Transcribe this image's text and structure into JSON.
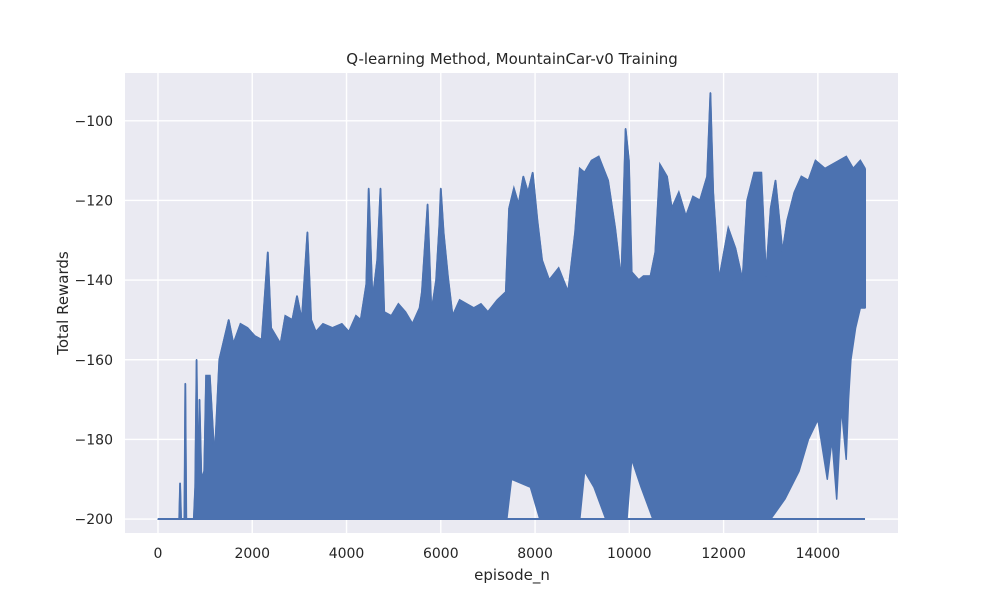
{
  "chart_data": {
    "type": "line",
    "title": "Q-learning Method, MountainCar-v0 Training",
    "xlabel": "episode_n",
    "ylabel": "Total Rewards",
    "xlim": [
      -700,
      15700
    ],
    "ylim": [
      -203.5,
      -88
    ],
    "x_ticks": [
      0,
      2000,
      4000,
      6000,
      8000,
      10000,
      12000,
      14000
    ],
    "x_tick_labels": [
      "0",
      "2000",
      "4000",
      "6000",
      "8000",
      "10000",
      "12000",
      "14000"
    ],
    "y_ticks": [
      -200,
      -180,
      -160,
      -140,
      -120,
      -100
    ],
    "y_tick_labels": [
      "−200",
      "−180",
      "−160",
      "−140",
      "−120",
      "−100"
    ],
    "grid": true,
    "background_color": "#eaeaf2",
    "series": [
      {
        "color": "#4c72b0",
        "x_range": [
          0,
          15000
        ],
        "baseline": -200,
        "lower_envelope": [
          [
            0,
            -200
          ],
          [
            7400,
            -200
          ],
          [
            7500,
            -190
          ],
          [
            7900,
            -192
          ],
          [
            8100,
            -200
          ],
          [
            8950,
            -200
          ],
          [
            9050,
            -188
          ],
          [
            9250,
            -192
          ],
          [
            9500,
            -200
          ],
          [
            9950,
            -200
          ],
          [
            10050,
            -185
          ],
          [
            10250,
            -192
          ],
          [
            10500,
            -200
          ],
          [
            13000,
            -200
          ],
          [
            13300,
            -195
          ],
          [
            13600,
            -188
          ],
          [
            13800,
            -180
          ],
          [
            14000,
            -175
          ],
          [
            14200,
            -190
          ],
          [
            14300,
            -180
          ],
          [
            14400,
            -195
          ],
          [
            14500,
            -172
          ],
          [
            14600,
            -185
          ],
          [
            14650,
            -170
          ],
          [
            14700,
            -160
          ],
          [
            14800,
            -152
          ],
          [
            14900,
            -147
          ],
          [
            15000,
            -147
          ]
        ],
        "upper_envelope": [
          [
            0,
            -200
          ],
          [
            450,
            -200
          ],
          [
            470,
            -191
          ],
          [
            490,
            -200
          ],
          [
            560,
            -200
          ],
          [
            580,
            -166
          ],
          [
            600,
            -200
          ],
          [
            760,
            -200
          ],
          [
            790,
            -192
          ],
          [
            820,
            -160
          ],
          [
            850,
            -195
          ],
          [
            880,
            -170
          ],
          [
            920,
            -190
          ],
          [
            980,
            -188
          ],
          [
            1020,
            -164
          ],
          [
            1100,
            -164
          ],
          [
            1200,
            -185
          ],
          [
            1300,
            -160
          ],
          [
            1400,
            -155
          ],
          [
            1500,
            -150
          ],
          [
            1600,
            -156
          ],
          [
            1750,
            -151
          ],
          [
            1900,
            -152
          ],
          [
            2050,
            -154
          ],
          [
            2200,
            -155
          ],
          [
            2330,
            -133
          ],
          [
            2400,
            -152
          ],
          [
            2600,
            -156
          ],
          [
            2700,
            -149
          ],
          [
            2850,
            -150
          ],
          [
            2950,
            -144
          ],
          [
            3050,
            -150
          ],
          [
            3170,
            -128
          ],
          [
            3250,
            -150
          ],
          [
            3350,
            -153
          ],
          [
            3500,
            -151
          ],
          [
            3700,
            -152
          ],
          [
            3900,
            -151
          ],
          [
            4050,
            -153
          ],
          [
            4200,
            -149
          ],
          [
            4300,
            -150
          ],
          [
            4420,
            -141
          ],
          [
            4470,
            -117
          ],
          [
            4550,
            -145
          ],
          [
            4650,
            -135
          ],
          [
            4720,
            -117
          ],
          [
            4800,
            -148
          ],
          [
            4950,
            -149
          ],
          [
            5100,
            -146
          ],
          [
            5250,
            -148
          ],
          [
            5400,
            -151
          ],
          [
            5550,
            -147
          ],
          [
            5600,
            -143
          ],
          [
            5720,
            -121
          ],
          [
            5800,
            -148
          ],
          [
            5900,
            -140
          ],
          [
            5970,
            -126
          ],
          [
            6000,
            -117
          ],
          [
            6060,
            -128
          ],
          [
            6150,
            -139
          ],
          [
            6250,
            -149
          ],
          [
            6400,
            -145
          ],
          [
            6550,
            -146
          ],
          [
            6700,
            -147
          ],
          [
            6850,
            -146
          ],
          [
            7000,
            -148
          ],
          [
            7200,
            -145
          ],
          [
            7380,
            -143
          ],
          [
            7450,
            -122
          ],
          [
            7550,
            -117
          ],
          [
            7650,
            -121
          ],
          [
            7750,
            -114
          ],
          [
            7850,
            -118
          ],
          [
            7950,
            -113
          ],
          [
            8050,
            -125
          ],
          [
            8150,
            -135
          ],
          [
            8300,
            -140
          ],
          [
            8500,
            -137
          ],
          [
            8700,
            -143
          ],
          [
            8850,
            -128
          ],
          [
            8950,
            -112
          ],
          [
            9050,
            -113
          ],
          [
            9200,
            -110
          ],
          [
            9350,
            -109
          ],
          [
            9450,
            -112
          ],
          [
            9550,
            -115
          ],
          [
            9700,
            -127
          ],
          [
            9830,
            -140
          ],
          [
            9920,
            -102
          ],
          [
            9990,
            -110
          ],
          [
            10050,
            -138
          ],
          [
            10200,
            -140
          ],
          [
            10300,
            -139
          ],
          [
            10450,
            -139
          ],
          [
            10550,
            -133
          ],
          [
            10650,
            -111
          ],
          [
            10800,
            -114
          ],
          [
            10900,
            -122
          ],
          [
            11050,
            -118
          ],
          [
            11200,
            -124
          ],
          [
            11350,
            -119
          ],
          [
            11500,
            -120
          ],
          [
            11650,
            -114
          ],
          [
            11720,
            -93
          ],
          [
            11780,
            -118
          ],
          [
            11900,
            -140
          ],
          [
            12100,
            -127
          ],
          [
            12250,
            -132
          ],
          [
            12400,
            -140
          ],
          [
            12500,
            -120
          ],
          [
            12650,
            -113
          ],
          [
            12800,
            -113
          ],
          [
            12900,
            -139
          ],
          [
            13000,
            -122
          ],
          [
            13100,
            -115
          ],
          [
            13250,
            -133
          ],
          [
            13350,
            -125
          ],
          [
            13500,
            -118
          ],
          [
            13650,
            -114
          ],
          [
            13800,
            -115
          ],
          [
            13950,
            -110
          ],
          [
            14150,
            -112
          ],
          [
            14300,
            -111
          ],
          [
            14450,
            -110
          ],
          [
            14600,
            -109
          ],
          [
            14750,
            -112
          ],
          [
            14900,
            -110
          ],
          [
            15000,
            -112
          ]
        ]
      }
    ]
  }
}
